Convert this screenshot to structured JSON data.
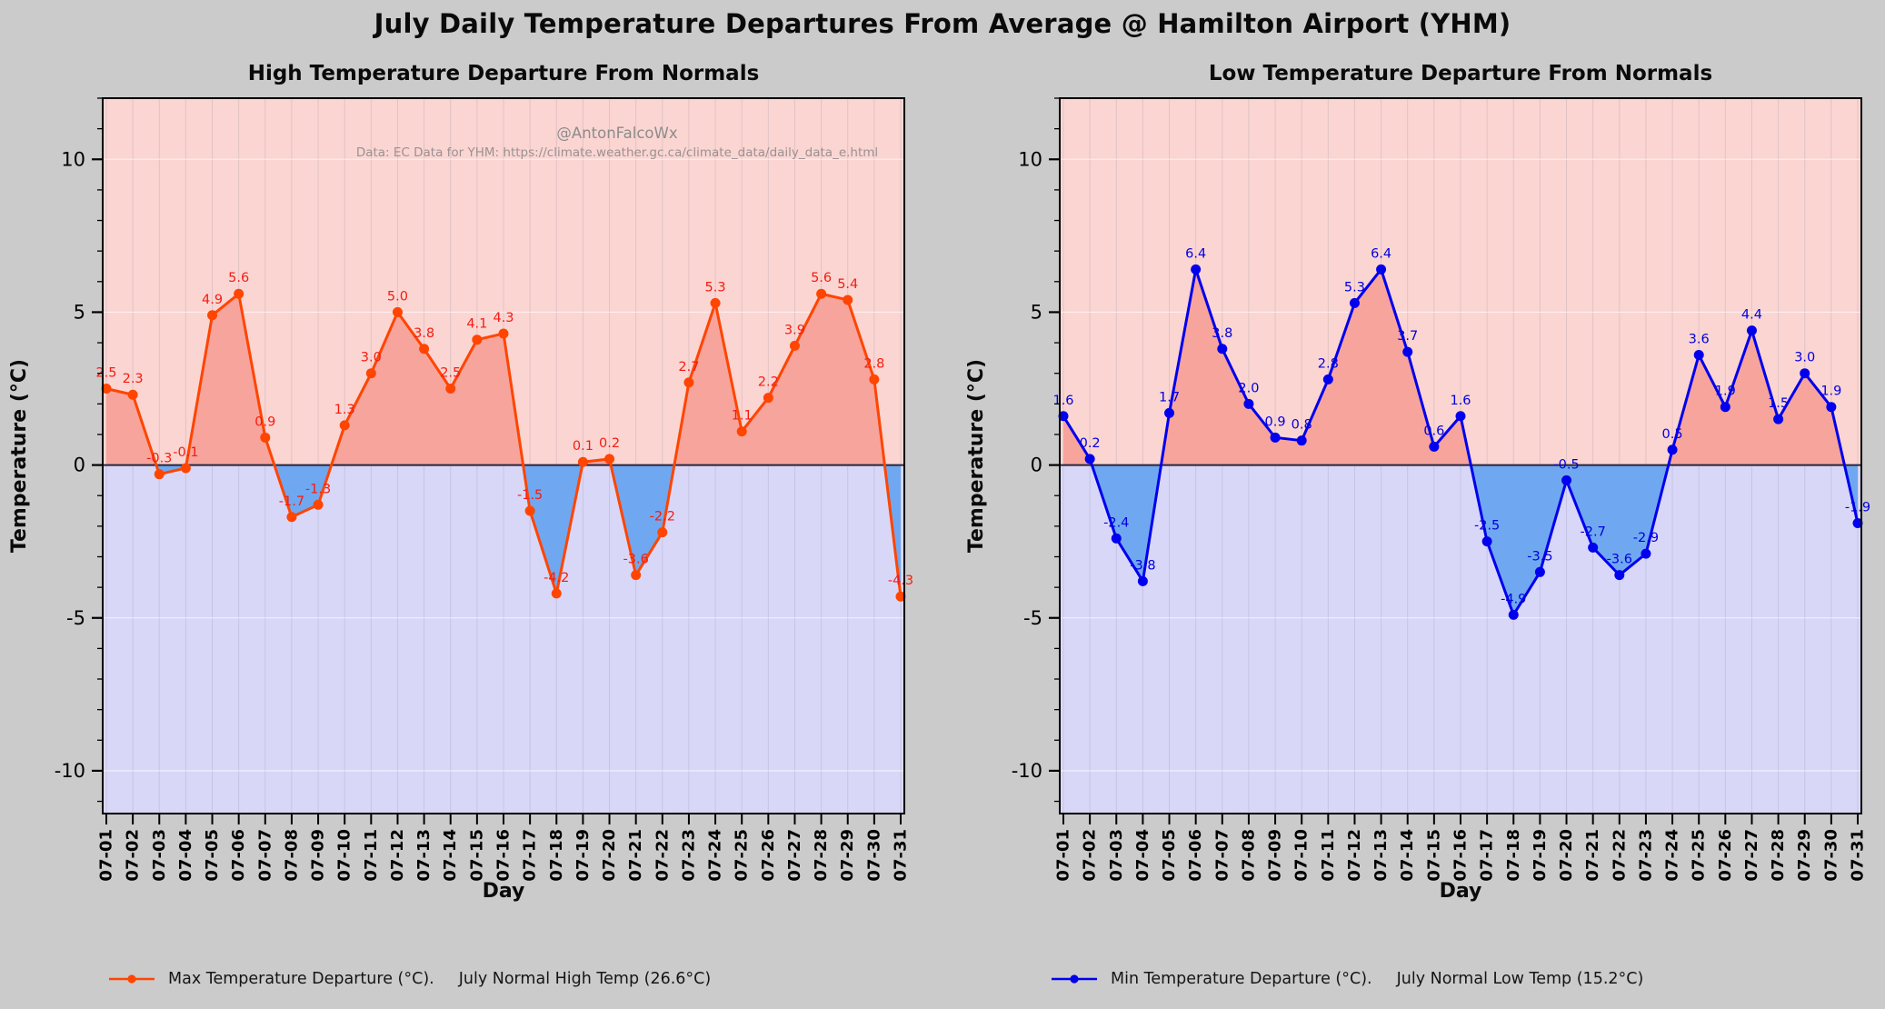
{
  "page": {
    "title": "July Daily Temperature Departures From Average @ Hamilton Airport (YHM)",
    "background": "#cbcbcb"
  },
  "chart_data": [
    {
      "type": "line",
      "title": "High Temperature Departure From Normals",
      "xlabel": "Day",
      "ylabel": "Temperature (°C)",
      "categories": [
        "07-01",
        "07-02",
        "07-03",
        "07-04",
        "07-05",
        "07-06",
        "07-07",
        "07-08",
        "07-09",
        "07-10",
        "07-11",
        "07-12",
        "07-13",
        "07-14",
        "07-15",
        "07-16",
        "07-17",
        "07-18",
        "07-19",
        "07-20",
        "07-21",
        "07-22",
        "07-23",
        "07-24",
        "07-25",
        "07-26",
        "07-27",
        "07-28",
        "07-29",
        "07-30",
        "07-31"
      ],
      "series": [
        {
          "name": "Max Temperature Departure (°C)",
          "values": [
            2.5,
            2.3,
            -0.3,
            -0.1,
            4.9,
            5.6,
            0.9,
            -1.7,
            -1.3,
            1.3,
            3.0,
            5.0,
            3.8,
            2.5,
            4.1,
            4.3,
            -1.5,
            -4.2,
            0.1,
            0.2,
            -3.6,
            -2.2,
            2.7,
            5.3,
            1.1,
            2.2,
            3.9,
            5.6,
            5.4,
            2.8,
            -4.3
          ]
        }
      ],
      "ylim": [
        -11.4,
        12.0
      ],
      "yticks": [
        10,
        5,
        0,
        -5,
        -10
      ],
      "grid": true,
      "legend_position": "below-left",
      "line_color": "#ff4500",
      "label_color": "#f51c10",
      "fill_above_color": "#f7a49c",
      "fill_below_color": "#6fa8f0",
      "bg_above_color": "#fbd5d2",
      "bg_below_color": "#d9d7f8",
      "zero_line_color": "#262640",
      "legend": {
        "series_label": "Max Temperature Departure (°C).",
        "normal_label": "July Normal High Temp (26.6°C)"
      },
      "annotations": {
        "handle": "@AntonFalcoWx",
        "source": "Data: EC Data for YHM: https://climate.weather.gc.ca/climate_data/daily_data_e.html"
      }
    },
    {
      "type": "line",
      "title": "Low Temperature Departure From Normals",
      "xlabel": "Day",
      "ylabel": "Temperature (°C)",
      "categories": [
        "07-01",
        "07-02",
        "07-03",
        "07-04",
        "07-05",
        "07-06",
        "07-07",
        "07-08",
        "07-09",
        "07-10",
        "07-11",
        "07-12",
        "07-13",
        "07-14",
        "07-15",
        "07-16",
        "07-17",
        "07-18",
        "07-19",
        "07-20",
        "07-21",
        "07-22",
        "07-23",
        "07-24",
        "07-25",
        "07-26",
        "07-27",
        "07-28",
        "07-29",
        "07-30",
        "07-31"
      ],
      "series": [
        {
          "name": "Min Temperature Departure (°C)",
          "values": [
            1.6,
            0.2,
            -2.4,
            -3.8,
            1.7,
            6.4,
            3.8,
            2.0,
            0.9,
            0.8,
            2.8,
            5.3,
            6.4,
            3.7,
            0.6,
            1.6,
            -2.5,
            -4.9,
            -3.5,
            -0.5,
            -2.7,
            -3.6,
            -2.9,
            0.5,
            3.6,
            1.9,
            4.4,
            1.5,
            3.0,
            1.9,
            -1.9
          ]
        }
      ],
      "ylim": [
        -11.4,
        12.0
      ],
      "yticks": [
        10,
        5,
        0,
        -5,
        -10
      ],
      "grid": true,
      "legend_position": "below-left",
      "line_color": "#0000ee",
      "label_color": "#0000e0",
      "fill_above_color": "#f7a49c",
      "fill_below_color": "#6fa8f0",
      "bg_above_color": "#fbd5d2",
      "bg_below_color": "#d9d7f8",
      "zero_line_color": "#262640",
      "legend": {
        "series_label": "Min Temperature Departure (°C).",
        "normal_label": "July Normal Low Temp (15.2°C)"
      }
    }
  ]
}
